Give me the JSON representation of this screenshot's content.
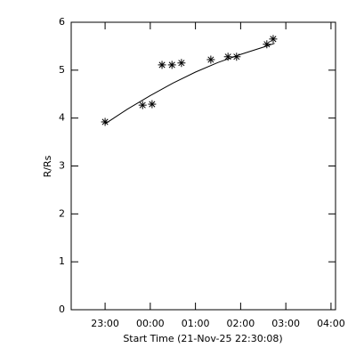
{
  "chart_data": {
    "type": "scatter",
    "xlabel": "Start Time (21-Nov-25 22:30:08)",
    "ylabel": "R/Rs",
    "x": [
      23.0,
      23.83,
      24.04,
      24.26,
      24.48,
      24.69,
      25.34,
      25.72,
      25.91,
      26.58,
      26.72
    ],
    "values": [
      3.92,
      4.27,
      4.29,
      5.11,
      5.11,
      5.15,
      5.22,
      5.28,
      5.28,
      5.54,
      5.65
    ],
    "fit": {
      "x": [
        23.0,
        23.5,
        24.0,
        24.5,
        25.0,
        25.5,
        26.0,
        26.5,
        26.75
      ],
      "values": [
        3.88,
        4.19,
        4.47,
        4.73,
        4.96,
        5.16,
        5.33,
        5.48,
        5.56
      ]
    },
    "color": "#000000",
    "xlim": [
      22.25,
      28.1
    ],
    "xticks": [
      {
        "value": 23,
        "label": "23:00"
      },
      {
        "value": 24,
        "label": "00:00"
      },
      {
        "value": 25,
        "label": "01:00"
      },
      {
        "value": 26,
        "label": "02:00"
      },
      {
        "value": 27,
        "label": "03:00"
      },
      {
        "value": 28,
        "label": "04:00"
      }
    ],
    "ylim": [
      0,
      6
    ],
    "yticks": [
      0,
      1,
      2,
      3,
      4,
      5,
      6
    ]
  }
}
